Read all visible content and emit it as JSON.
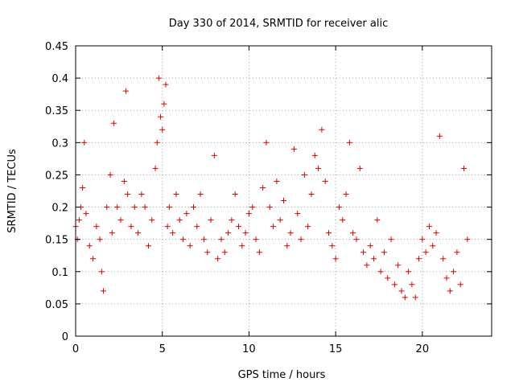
{
  "chart_data": {
    "type": "scatter",
    "title": "Day 330 of 2014, SRMTID for receiver alic",
    "xlabel": "GPS time / hours",
    "ylabel": "SRMTID / TECUs",
    "xlim": [
      0,
      24
    ],
    "ylim": [
      0,
      0.45
    ],
    "x_ticks": [
      0,
      5,
      10,
      15,
      20
    ],
    "x_tick_labels": [
      "0",
      "5",
      "10",
      "15",
      "20"
    ],
    "y_ticks": [
      0,
      0.05,
      0.1,
      0.15,
      0.2,
      0.25,
      0.3,
      0.35,
      0.4,
      0.45
    ],
    "y_tick_labels": [
      "0",
      "0.05",
      "0.1",
      "0.15",
      "0.2",
      "0.25",
      "0.3",
      "0.35",
      "0.4",
      "0.45"
    ],
    "grid": true,
    "marker": "+",
    "color": "#e00000",
    "series": [
      {
        "x": [
          0.0,
          0.1,
          0.2,
          0.3,
          0.4,
          0.5,
          0.6,
          0.8,
          1.0,
          1.2,
          1.4,
          1.5,
          1.6,
          1.8,
          2.0,
          2.1,
          2.2,
          2.4,
          2.6,
          2.8,
          2.9,
          3.0,
          3.2,
          3.4,
          3.6,
          3.8,
          4.0,
          4.2,
          4.4,
          4.6,
          4.7,
          4.8,
          4.9,
          5.0,
          5.1,
          5.2,
          5.3,
          5.4,
          5.6,
          5.8,
          6.0,
          6.2,
          6.4,
          6.6,
          6.8,
          7.0,
          7.2,
          7.4,
          7.6,
          7.8,
          8.0,
          8.2,
          8.4,
          8.6,
          8.8,
          9.0,
          9.2,
          9.4,
          9.6,
          9.8,
          10.0,
          10.2,
          10.4,
          10.6,
          10.8,
          11.0,
          11.2,
          11.4,
          11.6,
          11.8,
          12.0,
          12.2,
          12.4,
          12.6,
          12.8,
          13.0,
          13.2,
          13.4,
          13.6,
          13.8,
          14.0,
          14.2,
          14.4,
          14.6,
          14.8,
          15.0,
          15.2,
          15.4,
          15.6,
          15.8,
          16.0,
          16.2,
          16.4,
          16.6,
          16.8,
          17.0,
          17.2,
          17.4,
          17.6,
          17.8,
          18.0,
          18.2,
          18.4,
          18.6,
          18.8,
          19.0,
          19.2,
          19.4,
          19.6,
          19.8,
          20.0,
          20.2,
          20.4,
          20.6,
          20.8,
          21.0,
          21.2,
          21.4,
          21.6,
          21.8,
          22.0,
          22.2,
          22.4,
          22.6
        ],
        "y": [
          0.17,
          0.15,
          0.18,
          0.2,
          0.23,
          0.3,
          0.19,
          0.14,
          0.12,
          0.17,
          0.15,
          0.1,
          0.07,
          0.2,
          0.25,
          0.16,
          0.33,
          0.2,
          0.18,
          0.24,
          0.38,
          0.22,
          0.17,
          0.2,
          0.16,
          0.22,
          0.2,
          0.14,
          0.18,
          0.26,
          0.3,
          0.4,
          0.34,
          0.32,
          0.36,
          0.39,
          0.17,
          0.2,
          0.16,
          0.22,
          0.18,
          0.15,
          0.19,
          0.14,
          0.2,
          0.17,
          0.22,
          0.15,
          0.13,
          0.18,
          0.28,
          0.12,
          0.15,
          0.13,
          0.16,
          0.18,
          0.22,
          0.17,
          0.14,
          0.16,
          0.19,
          0.2,
          0.15,
          0.13,
          0.23,
          0.3,
          0.2,
          0.17,
          0.24,
          0.18,
          0.21,
          0.14,
          0.16,
          0.29,
          0.19,
          0.15,
          0.25,
          0.17,
          0.22,
          0.28,
          0.26,
          0.32,
          0.24,
          0.16,
          0.14,
          0.12,
          0.2,
          0.18,
          0.22,
          0.3,
          0.16,
          0.15,
          0.26,
          0.13,
          0.11,
          0.14,
          0.12,
          0.18,
          0.1,
          0.13,
          0.09,
          0.15,
          0.08,
          0.11,
          0.07,
          0.06,
          0.1,
          0.08,
          0.06,
          0.12,
          0.15,
          0.13,
          0.17,
          0.14,
          0.16,
          0.31,
          0.12,
          0.09,
          0.07,
          0.1,
          0.13,
          0.08,
          0.26,
          0.15
        ]
      }
    ]
  }
}
